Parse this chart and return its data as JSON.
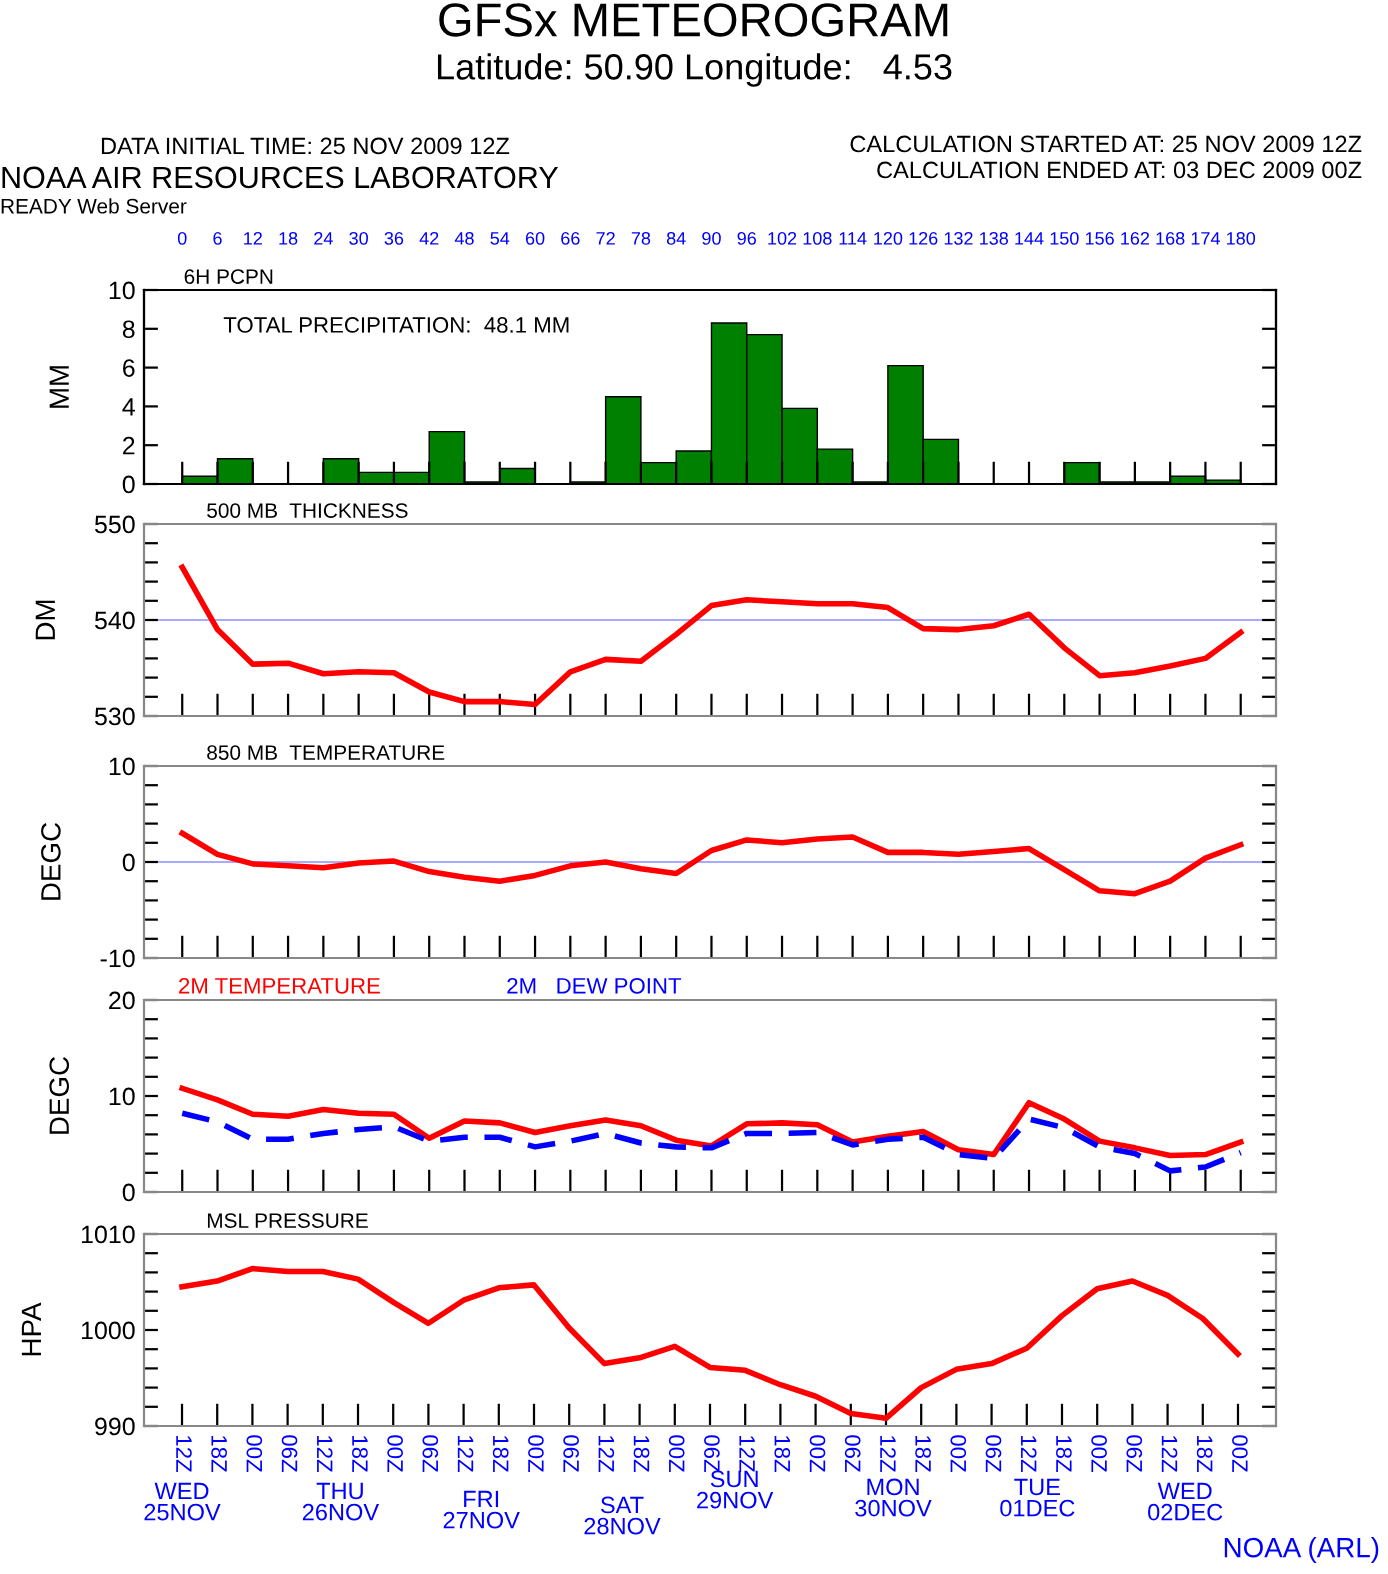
{
  "chart_data": [
    {
      "type": "histogram",
      "title": "GFSx METEOROGRAM",
      "subtitle": "Latitude: 50.90 Longitude:   4.53",
      "ylabel": "MM",
      "annotations": [
        "DATA INITIAL TIME: 25 NOV 2009 12Z",
        "CALCULATION STARTED AT: 25 NOV 2009 12Z",
        "NOAA AIR RESOURCES LABORATORY",
        "CALCULATION ENDED AT: 03 DEC 2009 00Z",
        "READY Web Server",
        "6H PCPN",
        "TOTAL PRECIPITATION:  48.1 MM"
      ],
      "bins": [
        0,
        6,
        12,
        18,
        24,
        30,
        36,
        42,
        48,
        54,
        60,
        66,
        72,
        78,
        84,
        90,
        96,
        102,
        108,
        114,
        120,
        126,
        132,
        138,
        144,
        150,
        156,
        162,
        168,
        174,
        180
      ],
      "values": [
        0.4,
        1.3,
        0,
        0,
        1.3,
        0.6,
        0.6,
        2.7,
        0.1,
        0.8,
        0,
        0.1,
        4.5,
        1.1,
        1.7,
        8.3,
        7.7,
        3.9,
        1.8,
        0.1,
        6.1,
        2.3,
        0,
        0,
        0,
        1.1,
        0.1,
        0.1,
        0.4,
        0.2
      ],
      "color": "#008000",
      "xlim": [
        -6.5,
        186
      ],
      "xticks": [
        0,
        6,
        12,
        18,
        24,
        30,
        36,
        42,
        48,
        54,
        60,
        66,
        72,
        78,
        84,
        90,
        96,
        102,
        108,
        114,
        120,
        126,
        132,
        138,
        144,
        150,
        156,
        162,
        168,
        174,
        180
      ],
      "x2lim": [
        -6.5,
        186
      ],
      "x2ticks": [
        0,
        6,
        12,
        18,
        24,
        30,
        36,
        42,
        48,
        54,
        60,
        66,
        72,
        78,
        84,
        90,
        96,
        102,
        108,
        114,
        120,
        126,
        132,
        138,
        144,
        150,
        156,
        162,
        168,
        174,
        180
      ],
      "ylim": [
        0,
        10
      ],
      "yticks": [
        0,
        2,
        4,
        6,
        8,
        10
      ],
      "tick_labels": "y",
      "grid": false,
      "legend": false
    },
    {
      "type": "line",
      "title": "500 MB  THICKNESS",
      "ylabel": "DM",
      "x": [
        0,
        6,
        12,
        18,
        24,
        30,
        36,
        42,
        48,
        54,
        60,
        66,
        72,
        78,
        84,
        90,
        96,
        102,
        108,
        114,
        120,
        126,
        132,
        138,
        144,
        150,
        156,
        162,
        168,
        174,
        180
      ],
      "series": [
        {
          "color": "#ff0000",
          "values": [
            545.5,
            539,
            535.4,
            535.5,
            534.4,
            534.6,
            534.5,
            532.5,
            531.5,
            531.5,
            531.2,
            534.6,
            535.9,
            535.7,
            538.5,
            541.5,
            542.1,
            541.9,
            541.7,
            541.7,
            541.3,
            539.1,
            539,
            539.4,
            540.6,
            537.1,
            534.2,
            534.5,
            535.2,
            536,
            538.7
          ]
        }
      ],
      "ref_lines": [
        {
          "axis": "y",
          "value": 540,
          "color": "#aaaaff"
        }
      ],
      "xlim": [
        -6.5,
        186
      ],
      "xticks": [
        0,
        6,
        12,
        18,
        24,
        30,
        36,
        42,
        48,
        54,
        60,
        66,
        72,
        78,
        84,
        90,
        96,
        102,
        108,
        114,
        120,
        126,
        132,
        138,
        144,
        150,
        156,
        162,
        168,
        174,
        180
      ],
      "ylim": [
        530,
        550
      ],
      "yticks": [
        530,
        {
          "value": 532,
          "label": null
        },
        {
          "value": 534,
          "label": null
        },
        {
          "value": 536,
          "label": null
        },
        {
          "value": 538,
          "label": null
        },
        540,
        {
          "value": 542,
          "label": null
        },
        {
          "value": 544,
          "label": null
        },
        {
          "value": 546,
          "label": null
        },
        {
          "value": 548,
          "label": null
        },
        550
      ],
      "tick_labels": "y",
      "grid": false,
      "legend": false,
      "marker": "none",
      "line_style": "solid"
    },
    {
      "type": "line",
      "title": "850 MB  TEMPERATURE",
      "ylabel": "DEGC",
      "x": [
        0,
        6,
        12,
        18,
        24,
        30,
        36,
        42,
        48,
        54,
        60,
        66,
        72,
        78,
        84,
        90,
        96,
        102,
        108,
        114,
        120,
        126,
        132,
        138,
        144,
        150,
        156,
        162,
        168,
        174,
        180
      ],
      "series": [
        {
          "color": "#ff0000",
          "values": [
            3,
            0.8,
            -0.2,
            -0.4,
            -0.6,
            -0.1,
            0.1,
            -1,
            -1.6,
            -2,
            -1.4,
            -0.4,
            0,
            -0.7,
            -1.2,
            1.2,
            2.3,
            2,
            2.4,
            2.6,
            1,
            1,
            0.8,
            1.1,
            1.4,
            -0.8,
            -3,
            -3.3,
            -2,
            0.4,
            1.8
          ]
        }
      ],
      "ref_lines": [
        {
          "axis": "y",
          "value": 0,
          "color": "#aaaaff"
        }
      ],
      "xlim": [
        -6.5,
        186
      ],
      "xticks": [
        0,
        6,
        12,
        18,
        24,
        30,
        36,
        42,
        48,
        54,
        60,
        66,
        72,
        78,
        84,
        90,
        96,
        102,
        108,
        114,
        120,
        126,
        132,
        138,
        144,
        150,
        156,
        162,
        168,
        174,
        180
      ],
      "ylim": [
        -10,
        10
      ],
      "yticks": [
        -10,
        {
          "value": -8,
          "label": null
        },
        {
          "value": -6,
          "label": null
        },
        {
          "value": -4,
          "label": null
        },
        {
          "value": -2,
          "label": null
        },
        0,
        {
          "value": 2,
          "label": null
        },
        {
          "value": 4,
          "label": null
        },
        {
          "value": 6,
          "label": null
        },
        {
          "value": 8,
          "label": null
        },
        10
      ],
      "tick_labels": "y",
      "grid": false,
      "legend": false,
      "marker": "none",
      "line_style": "solid"
    },
    {
      "type": "line",
      "ylabel": "DEGC",
      "x": [
        0,
        6,
        12,
        18,
        24,
        30,
        36,
        42,
        48,
        54,
        60,
        66,
        72,
        78,
        84,
        90,
        96,
        102,
        108,
        114,
        120,
        126,
        132,
        138,
        144,
        150,
        156,
        162,
        168,
        174,
        180
      ],
      "series": [
        {
          "name": "2M TEMPERATURE",
          "color": "#ff0000",
          "line_style": "solid",
          "values": [
            10.8,
            9.6,
            8.1,
            7.9,
            8.6,
            8.2,
            8.1,
            5.6,
            7.4,
            7.2,
            6.2,
            6.9,
            7.5,
            6.9,
            5.4,
            4.8,
            7.1,
            7.2,
            7,
            5.2,
            5.8,
            6.3,
            4.4,
            3.9,
            9.3,
            7.6,
            5.3,
            4.6,
            3.8,
            3.9,
            5.2
          ]
        },
        {
          "name": "2M   DEW POINT",
          "color": "#0000ff",
          "line_style": "dashed",
          "values": [
            8.2,
            7.3,
            5.5,
            5.5,
            6.1,
            6.5,
            6.8,
            5.3,
            5.7,
            5.7,
            4.7,
            5.3,
            6.1,
            5.1,
            4.7,
            4.6,
            6.1,
            6.1,
            6.2,
            4.9,
            5.5,
            5.7,
            3.9,
            3.5,
            7.6,
            6.7,
            4.7,
            4,
            2.2,
            2.6,
            4.1
          ]
        }
      ],
      "xlim": [
        -6.5,
        186
      ],
      "xticks": [
        0,
        6,
        12,
        18,
        24,
        30,
        36,
        42,
        48,
        54,
        60,
        66,
        72,
        78,
        84,
        90,
        96,
        102,
        108,
        114,
        120,
        126,
        132,
        138,
        144,
        150,
        156,
        162,
        168,
        174,
        180
      ],
      "ylim": [
        0,
        20
      ],
      "yticks": [
        0,
        {
          "value": 2,
          "label": null
        },
        {
          "value": 4,
          "label": null
        },
        {
          "value": 6,
          "label": null
        },
        {
          "value": 8,
          "label": null
        },
        10,
        {
          "value": 12,
          "label": null
        },
        {
          "value": 14,
          "label": null
        },
        {
          "value": 16,
          "label": null
        },
        {
          "value": 18,
          "label": null
        },
        20
      ],
      "tick_labels": "y",
      "grid": false,
      "legend": "top left",
      "marker": "none"
    },
    {
      "type": "line",
      "title": "MSL PRESSURE",
      "ylabel": "HPA",
      "annotations": [
        "WED\n25NOV",
        "THU\n26NOV",
        "FRI\n27NOV",
        "SAT\n28NOV",
        "SUN\n29NOV",
        "MON\n30NOV",
        "TUE\n01DEC",
        "WED\n02DEC",
        "NOAA (ARL)"
      ],
      "categories": [
        "12Z",
        "18Z",
        "00Z",
        "06Z",
        "12Z",
        "18Z",
        "00Z",
        "06Z",
        "12Z",
        "18Z",
        "00Z",
        "06Z",
        "12Z",
        "18Z",
        "00Z",
        "06Z",
        "12Z",
        "18Z",
        "00Z",
        "06Z",
        "12Z",
        "18Z",
        "00Z",
        "06Z",
        "12Z",
        "18Z",
        "00Z",
        "06Z",
        "12Z",
        "18Z",
        "00Z"
      ],
      "series": [
        {
          "color": "#ff0000",
          "values": [
            1004.5,
            1005.1,
            1006.4,
            1006.1,
            1006.1,
            1005.3,
            1002.9,
            1000.7,
            1003.1,
            1004.4,
            1004.7,
            1000.2,
            996.5,
            997.1,
            998.3,
            996.1,
            995.8,
            994.3,
            993.1,
            991.3,
            990.8,
            994,
            995.9,
            996.5,
            998.1,
            1001.5,
            1004.3,
            1005.1,
            1003.6,
            1001.2,
            997.5
          ]
        }
      ],
      "ylim": [
        990,
        1010
      ],
      "yticks": [
        990,
        {
          "value": 992,
          "label": null
        },
        {
          "value": 994,
          "label": null
        },
        {
          "value": 996,
          "label": null
        },
        {
          "value": 998,
          "label": null
        },
        1000,
        {
          "value": 1002,
          "label": null
        },
        {
          "value": 1004,
          "label": null
        },
        {
          "value": 1006,
          "label": null
        },
        {
          "value": 1008,
          "label": null
        },
        1010
      ],
      "grid": false,
      "legend": false,
      "marker": "none",
      "line_style": "solid"
    }
  ]
}
